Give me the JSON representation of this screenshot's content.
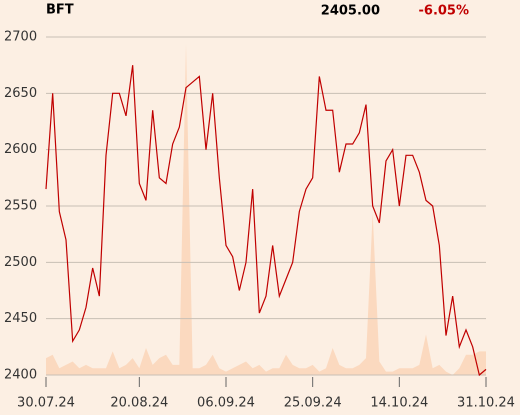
{
  "chart_data": {
    "type": "line",
    "title": "BFT",
    "last_price": "2405.00",
    "change": "-6.05%",
    "categories": [
      "30.07.24",
      null,
      null,
      null,
      null,
      null,
      null,
      null,
      null,
      null,
      null,
      null,
      null,
      null,
      "20.08.24",
      null,
      null,
      null,
      null,
      null,
      null,
      null,
      null,
      null,
      null,
      null,
      null,
      "06.09.24",
      null,
      null,
      null,
      null,
      null,
      null,
      null,
      null,
      null,
      null,
      null,
      null,
      "25.09.24",
      null,
      null,
      null,
      null,
      null,
      null,
      null,
      null,
      null,
      null,
      null,
      null,
      "14.10.24",
      null,
      null,
      null,
      null,
      null,
      null,
      null,
      null,
      null,
      null,
      null,
      null,
      "31.10.24"
    ],
    "series": [
      {
        "name": "BFT",
        "color": "#c00000",
        "values": [
          2565,
          2650,
          2545,
          2520,
          2430,
          2440,
          2460,
          2495,
          2470,
          2595,
          2650,
          2650,
          2630,
          2675,
          2570,
          2555,
          2635,
          2575,
          2570,
          2605,
          2620,
          2655,
          2660,
          2665,
          2600,
          2650,
          2575,
          2515,
          2505,
          2475,
          2500,
          2565,
          2455,
          2470,
          2515,
          2470,
          2485,
          2500,
          2545,
          2565,
          2575,
          2665,
          2635,
          2635,
          2580,
          2605,
          2605,
          2615,
          2640,
          2550,
          2535,
          2590,
          2600,
          2550,
          2595,
          2595,
          2580,
          2555,
          2550,
          2515,
          2435,
          2470,
          2425,
          2440,
          2425,
          2400,
          2405
        ]
      }
    ],
    "volume": {
      "color": "#fbd9bf",
      "lim": [
        0,
        100
      ],
      "values": [
        5,
        6,
        2,
        3,
        4,
        2,
        3,
        2,
        2,
        2,
        7,
        2,
        3,
        5,
        2,
        8,
        3,
        5,
        6,
        3,
        3,
        98,
        2,
        2,
        3,
        6,
        2,
        1,
        2,
        3,
        4,
        2,
        3,
        1,
        2,
        2,
        6,
        3,
        2,
        2,
        3,
        1,
        2,
        8,
        3,
        2,
        2,
        3,
        5,
        48,
        4,
        1,
        1,
        2,
        2,
        2,
        3,
        12,
        2,
        3,
        1,
        0,
        2,
        6,
        6,
        7,
        7
      ]
    },
    "ylim": [
      2400,
      2700
    ],
    "yticks": [
      2400,
      2450,
      2500,
      2550,
      2600,
      2650,
      2700
    ],
    "grid": true,
    "background": "#fcefe3",
    "change_color": "#c00000"
  }
}
